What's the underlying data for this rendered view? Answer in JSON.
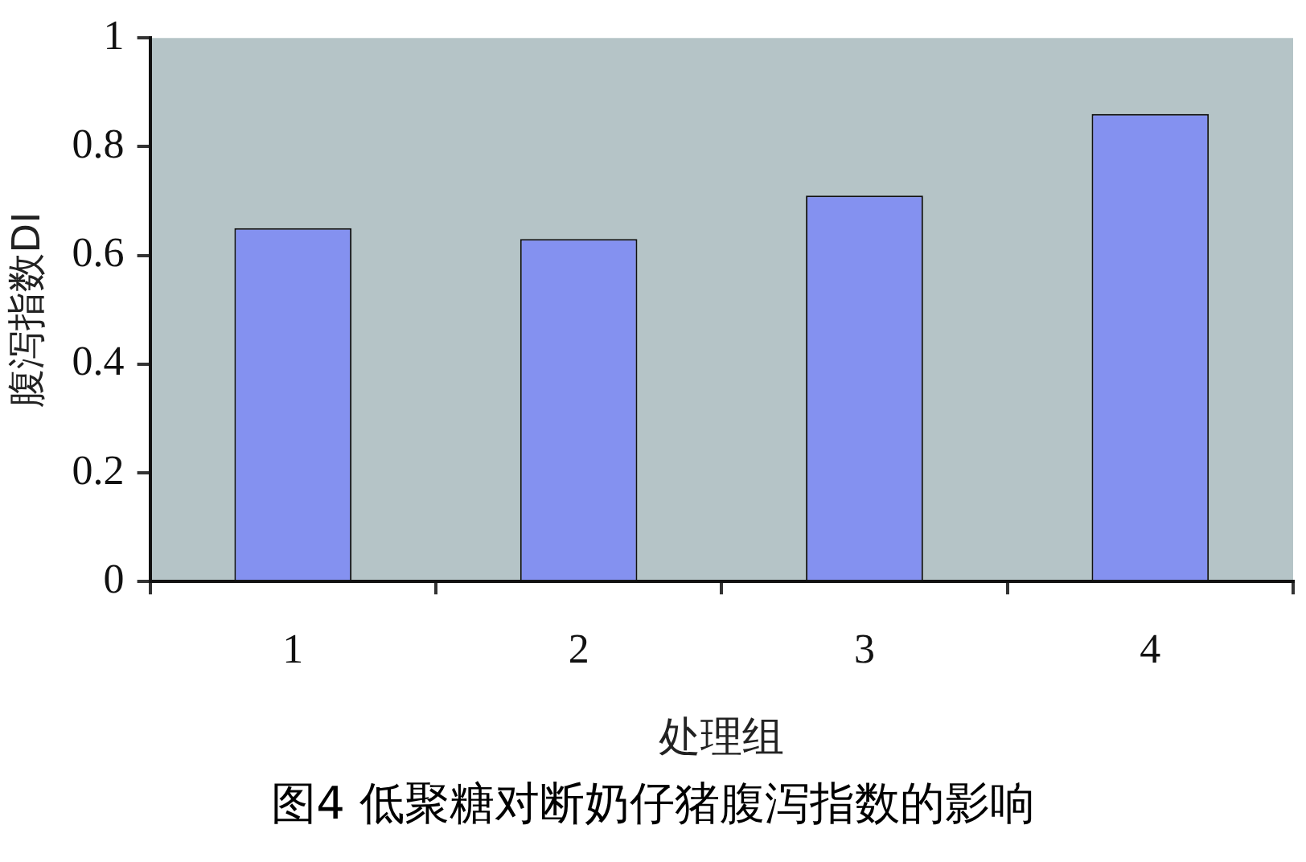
{
  "chart_data": {
    "type": "bar",
    "xlabel": "处理组",
    "ylabel": "腹泻指数DI",
    "categories": [
      "1",
      "2",
      "3",
      "4"
    ],
    "values": [
      0.65,
      0.63,
      0.71,
      0.86
    ],
    "color": "#8491f0",
    "ylim": [
      0,
      1
    ],
    "yticks": [
      0,
      0.2,
      0.4,
      0.6,
      0.8,
      1
    ],
    "grid": false,
    "legend": false,
    "annotations": [
      "图4 低聚糖对断奶仔猪腹泻指数的影响"
    ]
  }
}
